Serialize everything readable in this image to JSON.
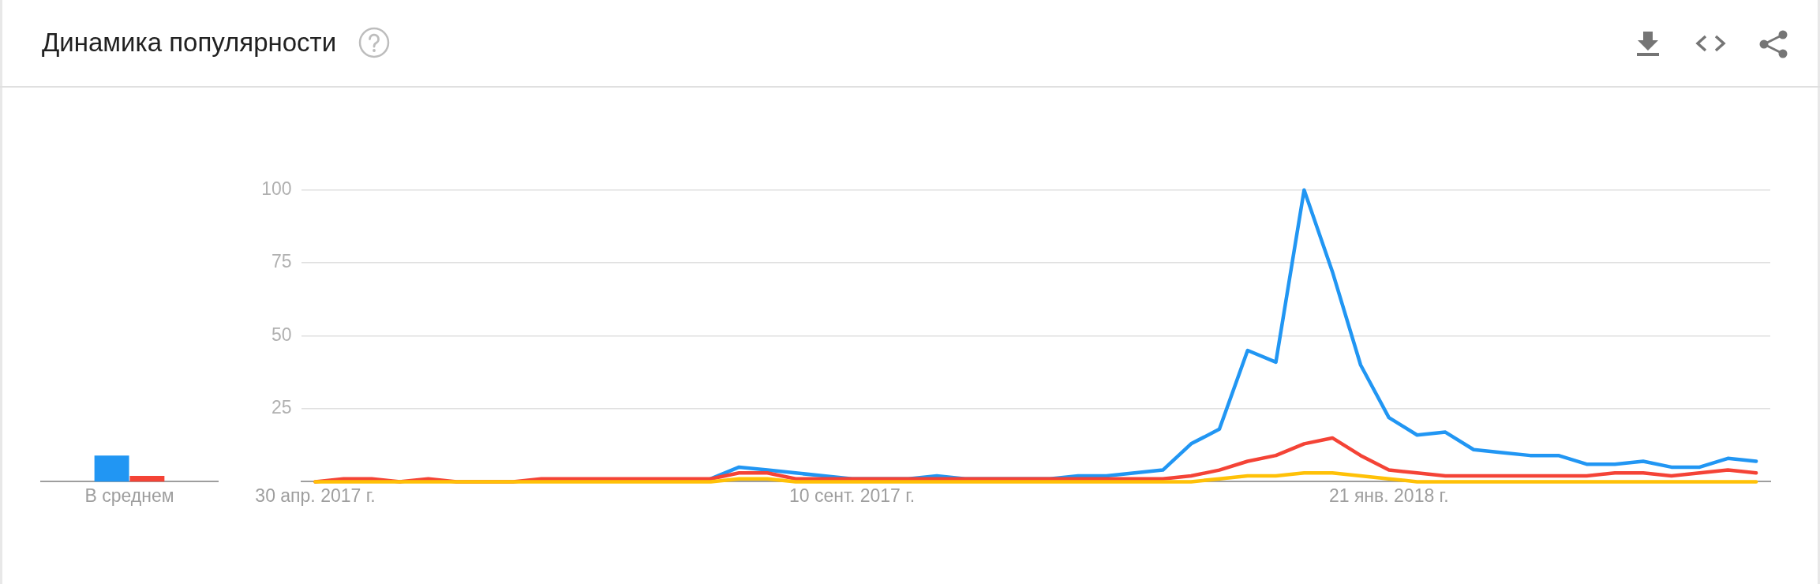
{
  "chart_data": [
    {
      "type": "bar",
      "title": "Динамика популярности",
      "categories": [
        "В среднем"
      ],
      "ylim": [
        0,
        100
      ],
      "tick_labels": "x",
      "series": [
        {
          "color": "#2196f3",
          "values": [
            9
          ]
        },
        {
          "color": "#f44336",
          "values": [
            2
          ]
        }
      ]
    },
    {
      "type": "line",
      "marker": "none",
      "grid": "y",
      "x": [
        "2017-04-30",
        "2017-05-07",
        "2017-05-14",
        "2017-05-21",
        "2017-05-28",
        "2017-06-04",
        "2017-06-11",
        "2017-06-18",
        "2017-06-25",
        "2017-07-02",
        "2017-07-09",
        "2017-07-16",
        "2017-07-23",
        "2017-07-30",
        "2017-08-06",
        "2017-08-13",
        "2017-08-20",
        "2017-08-27",
        "2017-09-03",
        "2017-09-10",
        "2017-09-17",
        "2017-09-24",
        "2017-10-01",
        "2017-10-08",
        "2017-10-15",
        "2017-10-22",
        "2017-10-29",
        "2017-11-05",
        "2017-11-12",
        "2017-11-19",
        "2017-11-26",
        "2017-12-03",
        "2017-12-10",
        "2017-12-17",
        "2017-12-24",
        "2017-12-31",
        "2018-01-07",
        "2018-01-14",
        "2018-01-21",
        "2018-01-28",
        "2018-02-04",
        "2018-02-11",
        "2018-02-18",
        "2018-02-25",
        "2018-03-04",
        "2018-03-11",
        "2018-03-18",
        "2018-03-25",
        "2018-04-01",
        "2018-04-08",
        "2018-04-15",
        "2018-04-22"
      ],
      "xlim": [
        "2017-04-26T12:00",
        "2018-04-25T12:00"
      ],
      "xticks": [
        {
          "value": "2017-04-30",
          "label": "30 апр. 2017 г."
        },
        {
          "value": "2017-09-10",
          "label": "10 сент. 2017 г."
        },
        {
          "value": "2018-01-21",
          "label": "21 янв. 2018 г."
        }
      ],
      "ylim": [
        0,
        100
      ],
      "yticks": [
        25,
        50,
        75,
        100
      ],
      "series": [
        {
          "color": "#2196f3",
          "values": [
            null,
            null,
            null,
            null,
            null,
            null,
            null,
            null,
            null,
            null,
            null,
            null,
            null,
            null,
            1,
            5,
            4,
            3,
            2,
            1,
            1,
            1,
            2,
            1,
            1,
            1,
            1,
            2,
            2,
            3,
            4,
            13,
            18,
            45,
            41,
            100,
            72,
            40,
            22,
            16,
            17,
            11,
            10,
            9,
            9,
            6,
            6,
            7,
            5,
            5,
            8,
            7
          ]
        },
        {
          "color": "#f44336",
          "values": [
            0,
            1,
            1,
            0,
            1,
            0,
            0,
            0,
            1,
            1,
            1,
            1,
            1,
            1,
            1,
            3,
            3,
            1,
            1,
            1,
            1,
            1,
            1,
            1,
            1,
            1,
            1,
            1,
            1,
            1,
            1,
            2,
            4,
            7,
            9,
            13,
            15,
            9,
            4,
            3,
            2,
            2,
            2,
            2,
            2,
            2,
            3,
            3,
            2,
            3,
            4,
            3
          ]
        },
        {
          "color": "#ffc107",
          "values": [
            0,
            0,
            0,
            0,
            0,
            0,
            0,
            0,
            0,
            0,
            0,
            0,
            0,
            0,
            0,
            1,
            1,
            0,
            0,
            0,
            0,
            0,
            0,
            0,
            0,
            0,
            0,
            0,
            0,
            0,
            0,
            0,
            1,
            2,
            2,
            3,
            3,
            2,
            1,
            0,
            0,
            0,
            0,
            0,
            0,
            0,
            0,
            0,
            0,
            0,
            0,
            0
          ]
        }
      ]
    }
  ]
}
